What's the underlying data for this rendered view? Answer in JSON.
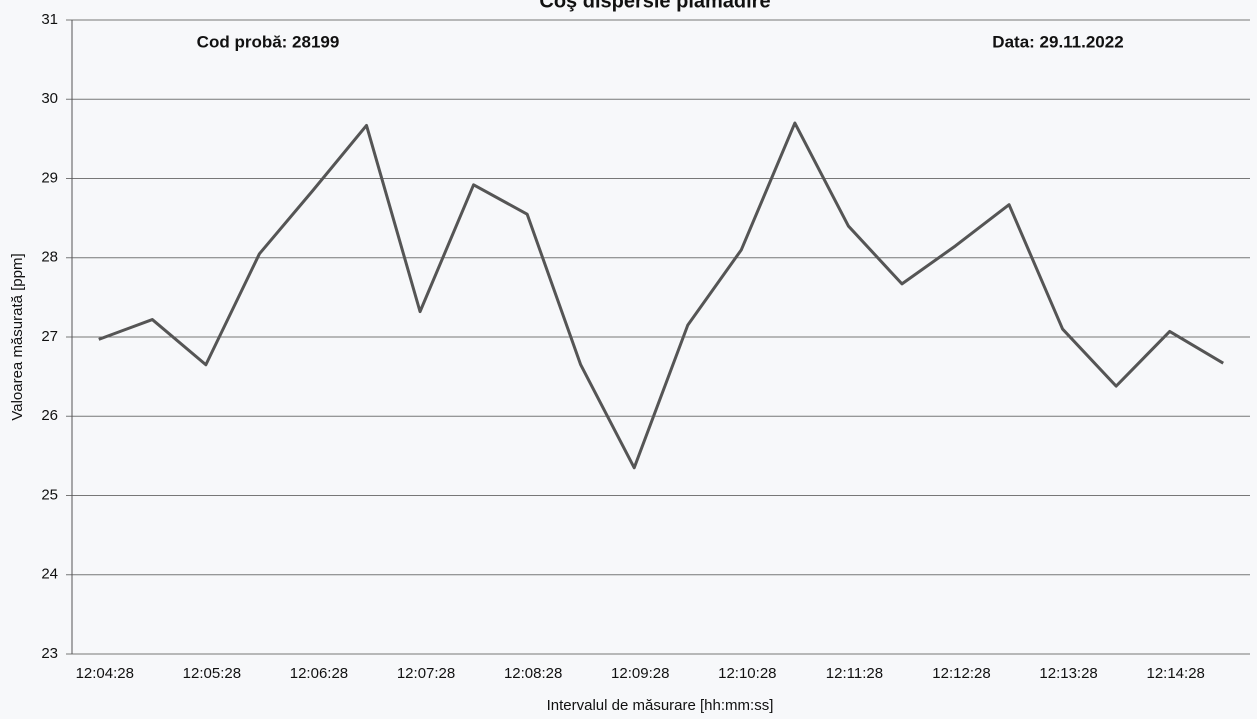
{
  "chart_data": {
    "type": "line",
    "title": "Coş dispersie plămădire",
    "annotations": [
      "Cod probă: 28199",
      "Data: 29.11.2022"
    ],
    "x_label": "Intervalul de măsurare [hh:mm:ss]",
    "y_label": "Valoarea măsurată [ppm]",
    "categories": [
      "12:04:28",
      null,
      "12:05:28",
      null,
      "12:06:28",
      null,
      "12:07:28",
      null,
      "12:08:28",
      null,
      "12:09:28",
      null,
      "12:10:28",
      null,
      "12:11:28",
      null,
      "12:12:28",
      null,
      "12:13:28",
      null,
      "12:14:28",
      null
    ],
    "series": [
      {
        "name": "Valoarea măsurată",
        "color": "#555555",
        "values": [
          26.97,
          27.22,
          26.65,
          28.05,
          28.85,
          29.67,
          27.32,
          28.92,
          28.55,
          26.65,
          25.35,
          27.15,
          28.1,
          29.7,
          28.4,
          27.67,
          28.15,
          28.67,
          27.1,
          26.38,
          27.07,
          26.67
        ]
      }
    ],
    "ylim": [
      23,
      31
    ],
    "yticks": [
      23,
      24,
      25,
      26,
      27,
      28,
      29,
      30,
      31
    ],
    "grid": true
  }
}
